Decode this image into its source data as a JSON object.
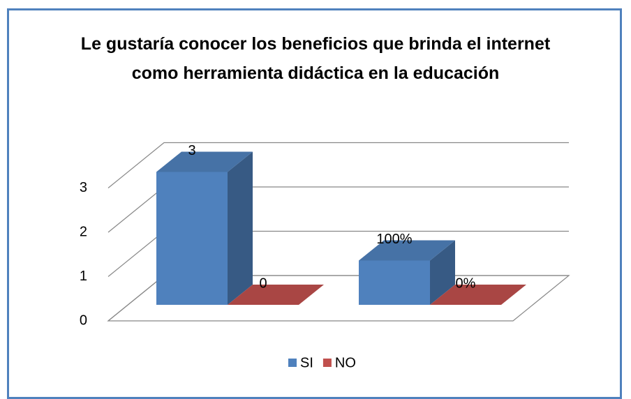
{
  "chart_data": {
    "type": "bar3d",
    "title": "Le gustaría conocer los beneficios que brinda el internet como herramienta didáctica en la educación",
    "categories": [
      null,
      null
    ],
    "series": [
      {
        "name": "SI",
        "color": "#4f81bd",
        "values": [
          3,
          1
        ],
        "value_labels": [
          "3",
          "100%"
        ]
      },
      {
        "name": "NO",
        "color": "#c0504d",
        "values": [
          0,
          0
        ],
        "value_labels": [
          "0",
          "0%"
        ]
      }
    ],
    "ylim": [
      0,
      3
    ],
    "yticks": [
      0,
      1,
      2,
      3
    ],
    "grid": true,
    "legend": "bottom"
  }
}
